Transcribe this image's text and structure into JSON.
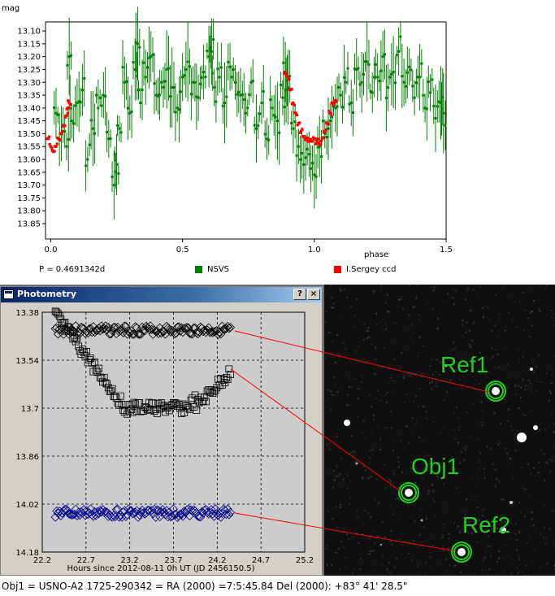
{
  "light_curve": {
    "chart_data": {
      "type": "scatter",
      "ylabel": "mag",
      "xlabel": "phase",
      "xlim": [
        0.0,
        1.5
      ],
      "ylim": [
        13.9,
        13.05
      ],
      "y_ticks": [
        "13.10",
        "13.15",
        "13.20",
        "13.25",
        "13.30",
        "13.35",
        "13.40",
        "13.45",
        "13.50",
        "13.55",
        "13.60",
        "13.65",
        "13.70",
        "13.75",
        "13.80",
        "13.85"
      ],
      "x_ticks": [
        "0.0",
        "0.5",
        "1.0",
        "1.5"
      ],
      "y_reversed": true,
      "series": [
        {
          "name": "NSVS",
          "color": "#008000",
          "error_bars": true,
          "points": [
            [
              0.02,
              13.42
            ],
            [
              0.04,
              13.5
            ],
            [
              0.06,
              13.55
            ],
            [
              0.08,
              13.45
            ],
            [
              0.1,
              13.38
            ],
            [
              0.12,
              13.33
            ],
            [
              0.14,
              13.6
            ],
            [
              0.16,
              13.48
            ],
            [
              0.18,
              13.4
            ],
            [
              0.2,
              13.35
            ],
            [
              0.22,
              13.52
            ],
            [
              0.24,
              13.7
            ],
            [
              0.25,
              13.62
            ],
            [
              0.26,
              13.48
            ],
            [
              0.28,
              13.3
            ],
            [
              0.3,
              13.42
            ],
            [
              0.32,
              13.25
            ],
            [
              0.34,
              13.38
            ],
            [
              0.36,
              13.28
            ],
            [
              0.38,
              13.2
            ],
            [
              0.4,
              13.35
            ],
            [
              0.42,
              13.3
            ],
            [
              0.44,
              13.25
            ],
            [
              0.46,
              13.32
            ],
            [
              0.48,
              13.4
            ],
            [
              0.5,
              13.28
            ],
            [
              0.52,
              13.22
            ],
            [
              0.54,
              13.3
            ],
            [
              0.56,
              13.36
            ],
            [
              0.58,
              13.26
            ],
            [
              0.6,
              13.2
            ],
            [
              0.62,
              13.32
            ],
            [
              0.64,
              13.28
            ],
            [
              0.66,
              13.38
            ],
            [
              0.68,
              13.24
            ],
            [
              0.7,
              13.3
            ],
            [
              0.72,
              13.35
            ],
            [
              0.74,
              13.42
            ],
            [
              0.76,
              13.3
            ],
            [
              0.78,
              13.48
            ],
            [
              0.8,
              13.38
            ],
            [
              0.82,
              13.52
            ],
            [
              0.84,
              13.4
            ],
            [
              0.86,
              13.45
            ],
            [
              0.88,
              13.36
            ],
            [
              0.9,
              13.32
            ],
            [
              0.92,
              13.48
            ],
            [
              0.94,
              13.55
            ],
            [
              0.96,
              13.62
            ],
            [
              0.98,
              13.58
            ],
            [
              1.0,
              13.66
            ],
            [
              1.02,
              13.55
            ],
            [
              1.04,
              13.5
            ],
            [
              1.06,
              13.45
            ],
            [
              1.08,
              13.4
            ],
            [
              1.1,
              13.35
            ],
            [
              1.12,
              13.3
            ],
            [
              1.14,
              13.38
            ],
            [
              1.16,
              13.25
            ],
            [
              1.18,
              13.3
            ],
            [
              1.2,
              13.22
            ],
            [
              1.22,
              13.34
            ],
            [
              1.24,
              13.28
            ],
            [
              1.26,
              13.2
            ],
            [
              1.28,
              13.32
            ],
            [
              1.3,
              13.26
            ],
            [
              1.32,
              13.18
            ],
            [
              1.34,
              13.3
            ],
            [
              1.36,
              13.24
            ],
            [
              1.38,
              13.36
            ],
            [
              1.4,
              13.28
            ],
            [
              1.42,
              13.4
            ],
            [
              1.44,
              13.34
            ],
            [
              1.46,
              13.44
            ],
            [
              1.48,
              13.38
            ],
            [
              1.49,
              13.42
            ],
            [
              0.07,
              13.2
            ],
            [
              0.33,
              13.15
            ],
            [
              0.61,
              13.18
            ],
            [
              0.89,
              13.26
            ]
          ]
        },
        {
          "name": "I.Sergey ccd",
          "color": "#ff0000",
          "error_bars": false,
          "points": [
            [
              -0.01,
              13.52
            ],
            [
              0.0,
              13.55
            ],
            [
              0.01,
              13.57
            ],
            [
              0.02,
              13.55
            ],
            [
              0.03,
              13.52
            ],
            [
              0.04,
              13.5
            ],
            [
              0.05,
              13.47
            ],
            [
              0.06,
              13.43
            ],
            [
              0.065,
              13.4
            ],
            [
              0.07,
              13.38
            ],
            [
              0.89,
              13.26
            ],
            [
              0.9,
              13.28
            ],
            [
              0.91,
              13.33
            ],
            [
              0.92,
              13.38
            ],
            [
              0.93,
              13.42
            ],
            [
              0.94,
              13.46
            ],
            [
              0.95,
              13.49
            ],
            [
              0.96,
              13.51
            ],
            [
              0.97,
              13.52
            ],
            [
              0.98,
              13.53
            ],
            [
              0.99,
              13.53
            ],
            [
              1.0,
              13.52
            ],
            [
              1.01,
              13.53
            ],
            [
              1.02,
              13.54
            ],
            [
              1.03,
              13.52
            ],
            [
              1.04,
              13.49
            ],
            [
              1.05,
              13.46
            ],
            [
              1.06,
              13.42
            ],
            [
              1.07,
              13.39
            ],
            [
              1.08,
              13.37
            ]
          ]
        }
      ]
    },
    "period_label": "P = 0.4691342d",
    "legend": [
      {
        "label": "NSVS",
        "color": "#008000"
      },
      {
        "label": "I.Sergey ccd",
        "color": "#ff0000"
      }
    ]
  },
  "photometry_window": {
    "title": "Photometry",
    "help_button": "?",
    "close_button": "×",
    "chart_data": {
      "type": "scatter",
      "xlabel": "Hours since 2012-08-11 0h UT (JD 2456150.5)",
      "xlim": [
        22.2,
        25.2
      ],
      "ylim": [
        14.18,
        13.38
      ],
      "x_ticks": [
        "22.2",
        "22.7",
        "23.2",
        "23.7",
        "24.2",
        "24.7",
        "25.2"
      ],
      "y_ticks": [
        "13.38",
        "13.54",
        "13.7",
        "13.86",
        "14.02",
        "14.18"
      ],
      "series": [
        {
          "name": "Ref1",
          "marker": "diamond",
          "color": "#000000",
          "mag_start": 13.44,
          "mag_end": 13.44,
          "x_start": 22.35,
          "x_end": 24.35
        },
        {
          "name": "Obj1",
          "marker": "square",
          "color": "#000000",
          "mag_start": 13.39,
          "mag_mid": 13.7,
          "mag_end": 13.58,
          "x_start": 22.35,
          "x_end": 24.35
        },
        {
          "name": "Ref2",
          "marker": "diamond",
          "color": "#00008b",
          "mag_start": 14.05,
          "mag_end": 14.05,
          "x_start": 22.35,
          "x_end": 24.35
        }
      ]
    }
  },
  "sky_image": {
    "labels": {
      "ref1": "Ref1",
      "obj1": "Obj1",
      "ref2": "Ref2"
    },
    "label_color": "#22cc22",
    "connector_color": "#ff0000"
  },
  "caption": "Obj1 = USNO-A2 1725-290342 =  RA (2000) =7:5:45.84  Del (2000): +83° 41' 28.5\""
}
